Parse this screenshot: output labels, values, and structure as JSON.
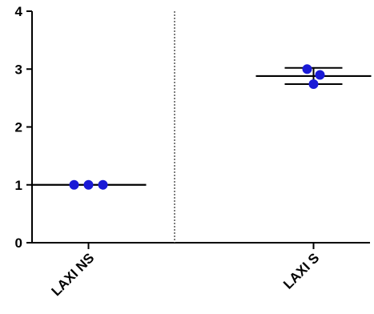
{
  "chart_data": {
    "type": "scatter",
    "title": "",
    "xlabel": "",
    "ylabel": "",
    "ylim": [
      0,
      4
    ],
    "yticks": [
      0,
      1,
      2,
      3,
      4
    ],
    "categories": [
      "LAXI NS",
      "LAXI S"
    ],
    "series": [
      {
        "category": "LAXI NS",
        "points": [
          1.0,
          1.0,
          1.0
        ],
        "mean": 1.0,
        "sd": 0.0
      },
      {
        "category": "LAXI S",
        "points": [
          3.0,
          2.74,
          2.9
        ],
        "mean": 2.88,
        "sd": 0.14
      }
    ],
    "divider": "dotted vertical line between groups",
    "point_color": "#1a1ad6",
    "line_color": "#000000",
    "grid": false,
    "legend": "none"
  }
}
